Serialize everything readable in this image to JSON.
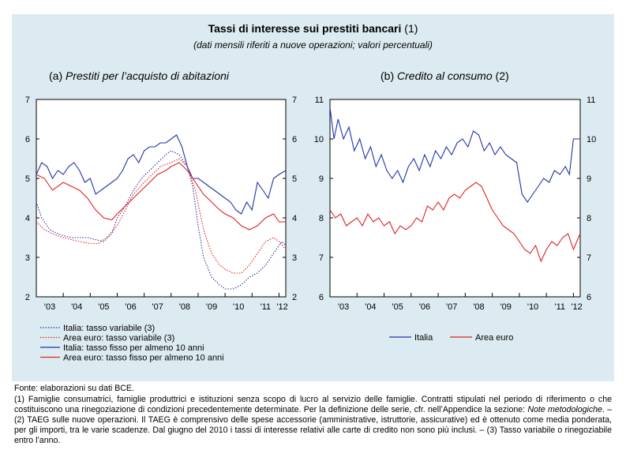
{
  "header": {
    "title_bold": "Tassi di interesse sui prestiti bancari",
    "title_note": "(1)",
    "subtitle": "(dati mensili riferiti a nuove operazioni; valori percentuali)"
  },
  "chart_data": [
    {
      "id": "a",
      "type": "line",
      "panel_prefix": "(a)",
      "title": "Prestiti per l’acquisto di abitazioni",
      "ylim": [
        2,
        7
      ],
      "yticks": [
        "2",
        "3",
        "4",
        "5",
        "6",
        "7"
      ],
      "x_tick_labels": [
        "'03",
        "'04",
        "'05",
        "'06",
        "'07",
        "'08",
        "'09",
        "'10",
        "'11",
        "'12"
      ],
      "x_range": [
        2003.0,
        2012.25
      ],
      "legend_position": "bottom",
      "series": [
        {
          "name": "Italia: tasso variabile (3)",
          "color": "#2233aa",
          "style": "dotted",
          "x": [
            2003.0,
            2003.2,
            2003.5,
            2003.8,
            2004.0,
            2004.3,
            2004.6,
            2004.9,
            2005.2,
            2005.5,
            2005.8,
            2006.0,
            2006.3,
            2006.6,
            2006.9,
            2007.2,
            2007.5,
            2007.8,
            2008.0,
            2008.3,
            2008.6,
            2008.8,
            2009.0,
            2009.2,
            2009.5,
            2009.8,
            2010.0,
            2010.3,
            2010.6,
            2010.9,
            2011.2,
            2011.5,
            2011.7,
            2011.9,
            2012.1,
            2012.25
          ],
          "y": [
            4.4,
            4.0,
            3.7,
            3.6,
            3.55,
            3.5,
            3.5,
            3.5,
            3.45,
            3.4,
            3.6,
            4.0,
            4.3,
            4.7,
            5.0,
            5.2,
            5.4,
            5.6,
            5.7,
            5.6,
            5.3,
            4.8,
            3.8,
            3.0,
            2.5,
            2.3,
            2.2,
            2.2,
            2.3,
            2.5,
            2.6,
            2.8,
            3.0,
            3.2,
            3.4,
            3.3
          ]
        },
        {
          "name": "Area euro: tasso variabile (3)",
          "color": "#dd2222",
          "style": "dotted",
          "x": [
            2003.0,
            2003.3,
            2003.6,
            2004.0,
            2004.3,
            2004.6,
            2005.0,
            2005.3,
            2005.6,
            2006.0,
            2006.3,
            2006.6,
            2007.0,
            2007.3,
            2007.6,
            2008.0,
            2008.3,
            2008.6,
            2008.9,
            2009.2,
            2009.5,
            2009.8,
            2010.0,
            2010.3,
            2010.6,
            2010.9,
            2011.2,
            2011.5,
            2011.8,
            2012.0,
            2012.25
          ],
          "y": [
            3.9,
            3.7,
            3.6,
            3.5,
            3.45,
            3.4,
            3.35,
            3.35,
            3.5,
            3.8,
            4.2,
            4.6,
            4.9,
            5.1,
            5.3,
            5.4,
            5.5,
            5.3,
            4.7,
            3.7,
            3.1,
            2.8,
            2.7,
            2.6,
            2.6,
            2.8,
            3.1,
            3.4,
            3.5,
            3.4,
            3.2
          ]
        },
        {
          "name": "Italia: tasso fisso per almeno 10 anni",
          "color": "#2233aa",
          "style": "solid",
          "x": [
            2003.0,
            2003.2,
            2003.4,
            2003.6,
            2003.8,
            2004.0,
            2004.2,
            2004.4,
            2004.6,
            2004.8,
            2005.0,
            2005.2,
            2005.4,
            2005.6,
            2005.8,
            2006.0,
            2006.2,
            2006.4,
            2006.6,
            2006.8,
            2007.0,
            2007.2,
            2007.4,
            2007.6,
            2007.8,
            2008.0,
            2008.2,
            2008.4,
            2008.6,
            2008.8,
            2009.0,
            2009.2,
            2009.4,
            2009.6,
            2009.8,
            2010.0,
            2010.2,
            2010.4,
            2010.6,
            2010.8,
            2011.0,
            2011.2,
            2011.4,
            2011.6,
            2011.8,
            2012.0,
            2012.25
          ],
          "y": [
            5.1,
            5.4,
            5.3,
            5.0,
            5.2,
            5.1,
            5.3,
            5.4,
            5.2,
            4.9,
            5.0,
            4.6,
            4.7,
            4.8,
            4.9,
            5.0,
            5.2,
            5.5,
            5.6,
            5.4,
            5.7,
            5.8,
            5.8,
            5.9,
            5.9,
            6.0,
            6.1,
            5.8,
            5.3,
            5.0,
            5.0,
            4.9,
            4.8,
            4.7,
            4.6,
            4.5,
            4.4,
            4.2,
            4.1,
            4.4,
            4.2,
            4.9,
            4.7,
            4.5,
            5.0,
            5.1,
            5.2
          ]
        },
        {
          "name": "Area euro: tasso fisso per almeno 10 anni",
          "color": "#dd2222",
          "style": "solid",
          "x": [
            2003.0,
            2003.3,
            2003.6,
            2004.0,
            2004.3,
            2004.6,
            2004.9,
            2005.2,
            2005.5,
            2005.8,
            2006.0,
            2006.3,
            2006.6,
            2006.9,
            2007.2,
            2007.5,
            2007.8,
            2008.0,
            2008.3,
            2008.6,
            2008.9,
            2009.2,
            2009.5,
            2009.8,
            2010.0,
            2010.3,
            2010.6,
            2010.9,
            2011.2,
            2011.5,
            2011.8,
            2012.0,
            2012.25
          ],
          "y": [
            5.1,
            5.0,
            4.7,
            4.9,
            4.8,
            4.7,
            4.5,
            4.2,
            4.0,
            3.95,
            4.1,
            4.3,
            4.5,
            4.7,
            4.9,
            5.1,
            5.2,
            5.3,
            5.4,
            5.2,
            4.9,
            4.6,
            4.4,
            4.2,
            4.1,
            4.0,
            3.8,
            3.7,
            3.8,
            4.0,
            4.1,
            3.9,
            3.9
          ]
        }
      ]
    },
    {
      "id": "b",
      "type": "line",
      "panel_prefix": "(b)",
      "title": "Credito al consumo",
      "title_note": "(2)",
      "ylim": [
        6,
        11
      ],
      "yticks": [
        "6",
        "7",
        "8",
        "9",
        "10",
        "11"
      ],
      "x_tick_labels": [
        "'03",
        "'04",
        "'05",
        "'06",
        "'07",
        "'08",
        "'09",
        "'10",
        "'11",
        "'12"
      ],
      "x_range": [
        2003.0,
        2012.25
      ],
      "legend_position": "bottom",
      "series": [
        {
          "name": "Italia",
          "color": "#2233aa",
          "style": "solid",
          "x": [
            2003.0,
            2003.15,
            2003.3,
            2003.5,
            2003.7,
            2003.9,
            2004.1,
            2004.3,
            2004.5,
            2004.7,
            2004.9,
            2005.1,
            2005.3,
            2005.5,
            2005.7,
            2005.9,
            2006.1,
            2006.3,
            2006.5,
            2006.7,
            2006.9,
            2007.1,
            2007.3,
            2007.5,
            2007.7,
            2007.9,
            2008.1,
            2008.3,
            2008.5,
            2008.7,
            2008.9,
            2009.1,
            2009.3,
            2009.5,
            2009.7,
            2009.9,
            2010.1,
            2010.3,
            2010.5,
            2010.7,
            2010.9,
            2011.1,
            2011.3,
            2011.5,
            2011.7,
            2011.85,
            2012.0,
            2012.15,
            2012.25
          ],
          "y": [
            10.8,
            10.0,
            10.5,
            10.0,
            10.3,
            9.7,
            10.0,
            9.5,
            9.8,
            9.3,
            9.6,
            9.2,
            9.0,
            9.2,
            8.9,
            9.3,
            9.5,
            9.2,
            9.6,
            9.3,
            9.7,
            9.5,
            9.8,
            9.6,
            9.9,
            10.0,
            9.8,
            10.2,
            10.1,
            9.7,
            9.9,
            9.6,
            9.8,
            9.6,
            9.5,
            9.4,
            8.6,
            8.4,
            8.6,
            8.8,
            9.0,
            8.9,
            9.2,
            9.1,
            9.3,
            9.1,
            10.0,
            10.0,
            10.0
          ]
        },
        {
          "name": "Area euro",
          "color": "#dd2222",
          "style": "solid",
          "x": [
            2003.0,
            2003.2,
            2003.4,
            2003.6,
            2003.8,
            2004.0,
            2004.2,
            2004.4,
            2004.6,
            2004.8,
            2005.0,
            2005.2,
            2005.4,
            2005.6,
            2005.8,
            2006.0,
            2006.2,
            2006.4,
            2006.6,
            2006.8,
            2007.0,
            2007.2,
            2007.4,
            2007.6,
            2007.8,
            2008.0,
            2008.2,
            2008.4,
            2008.6,
            2008.8,
            2009.0,
            2009.2,
            2009.4,
            2009.6,
            2009.8,
            2010.0,
            2010.2,
            2010.4,
            2010.6,
            2010.8,
            2011.0,
            2011.2,
            2011.4,
            2011.6,
            2011.8,
            2012.0,
            2012.25
          ],
          "y": [
            8.2,
            8.0,
            8.1,
            7.8,
            7.9,
            8.0,
            7.8,
            8.1,
            7.9,
            8.0,
            7.8,
            7.9,
            7.6,
            7.8,
            7.7,
            7.8,
            8.0,
            7.9,
            8.3,
            8.2,
            8.4,
            8.2,
            8.5,
            8.6,
            8.5,
            8.7,
            8.8,
            8.9,
            8.8,
            8.5,
            8.2,
            8.0,
            7.8,
            7.7,
            7.6,
            7.4,
            7.2,
            7.1,
            7.3,
            6.9,
            7.2,
            7.4,
            7.3,
            7.5,
            7.6,
            7.2,
            7.6
          ]
        }
      ]
    }
  ],
  "footer": {
    "source": "Fonte: elaborazioni su dati BCE.",
    "notes_part1": "(1) Famiglie consumatrici, famiglie produttrici e istituzioni senza scopo di lucro al servizio delle famiglie. Contratti stipulati nel periodo di riferimento o che costituiscono una rinegoziazione di condizioni precedentemente determinate. Per la definizione delle serie, cfr. nell’Appendice la sezione: ",
    "notes_italic": "Note metodologiche",
    "notes_part2": ". – (2) TAEG sulle nuove operazioni. Il TAEG è comprensivo delle spese accessorie (amministrative, istruttorie, assicurative) ed è ottenuto come media ponderata, per gli importi, tra le varie scadenze. Dal giugno del 2010 i tassi di interesse relativi alle carte di credito non sono più inclusi. – (3) Tasso variabile o rinegoziabile entro l’anno."
  }
}
